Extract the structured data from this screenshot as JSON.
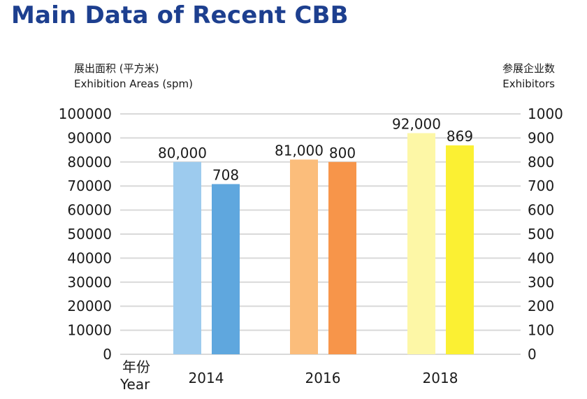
{
  "title": "Main Data of Recent CBB",
  "colors": {
    "title": "#1d3f8f",
    "gridline": "#d9d9d9",
    "text": "#1a1a1a"
  },
  "chart_data": {
    "type": "bar",
    "title": "",
    "y_left_label": [
      "展出面积 (平方米)",
      "Exhibition Areas (spm)"
    ],
    "y_right_label": [
      "参展企业数",
      "Exhibitors"
    ],
    "x_label": [
      "年份",
      "Year"
    ],
    "categories": [
      "2014",
      "2016",
      "2018"
    ],
    "series": [
      {
        "axis": "left",
        "values": [
          80000,
          81000,
          92000
        ],
        "data_labels": [
          "80,000",
          "81,000",
          "92,000"
        ],
        "colors": [
          "#9dcbee",
          "#fbbd7b",
          "#fdf7a6"
        ]
      },
      {
        "axis": "right",
        "values": [
          708,
          800,
          869
        ],
        "data_labels": [
          "708",
          "800",
          "869"
        ],
        "colors": [
          "#5fa7de",
          "#f7954a",
          "#fbf033"
        ]
      }
    ],
    "ylim_left": [
      0,
      100000
    ],
    "yticks_left": [
      0,
      10000,
      20000,
      30000,
      40000,
      50000,
      60000,
      70000,
      80000,
      90000,
      100000
    ],
    "ylim_right": [
      0,
      1000
    ],
    "yticks_right": [
      0,
      100,
      200,
      300,
      400,
      500,
      600,
      700,
      800,
      900,
      1000
    ],
    "grid": true,
    "legend": "none"
  }
}
